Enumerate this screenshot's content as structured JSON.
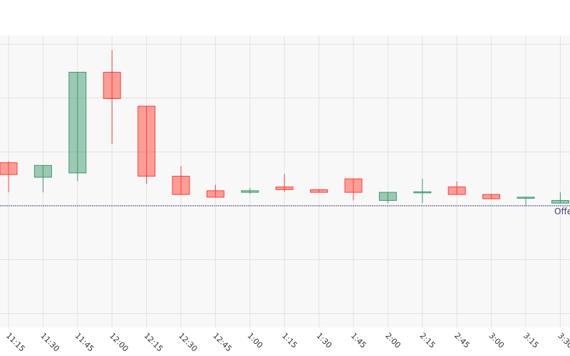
{
  "chart_data": {
    "type": "candlestick",
    "categories": [
      "11:15",
      "11:30",
      "11:45",
      "12:00",
      "12:15",
      "12:30",
      "12:45",
      "1:00",
      "1:15",
      "1:30",
      "1:45",
      "2:00",
      "2:15",
      "2:45",
      "3:00",
      "3:15",
      "3:30"
    ],
    "open": [
      2.8,
      2.53,
      2.61,
      4.48,
      3.85,
      2.55,
      2.28,
      2.25,
      2.35,
      2.3,
      2.5,
      2.1,
      2.24,
      2.35,
      2.21,
      2.14,
      2.05
    ],
    "high": [
      2.83,
      2.75,
      4.48,
      4.89,
      3.85,
      2.74,
      2.39,
      2.33,
      2.59,
      2.3,
      2.5,
      2.25,
      2.5,
      2.45,
      2.22,
      2.16,
      2.25
    ],
    "low": [
      2.25,
      2.25,
      2.46,
      3.15,
      2.41,
      2.21,
      2.16,
      2.22,
      2.26,
      2.25,
      2.1,
      2.05,
      2.05,
      2.21,
      2.13,
      2.0,
      2.05
    ],
    "close": [
      2.58,
      2.75,
      4.48,
      3.99,
      2.55,
      2.21,
      2.16,
      2.28,
      2.3,
      2.25,
      2.25,
      2.25,
      2.26,
      2.21,
      2.13,
      2.16,
      2.1
    ],
    "increasing_color": "#3d9970",
    "decreasing_color": "#ff4136",
    "ylim": [
      -0.26,
      5.16
    ],
    "yticks": [
      0,
      1,
      2,
      3,
      4,
      5
    ],
    "grid": true,
    "offer_line": {
      "value": 2,
      "label": "Offer",
      "color": "#44447a"
    }
  }
}
